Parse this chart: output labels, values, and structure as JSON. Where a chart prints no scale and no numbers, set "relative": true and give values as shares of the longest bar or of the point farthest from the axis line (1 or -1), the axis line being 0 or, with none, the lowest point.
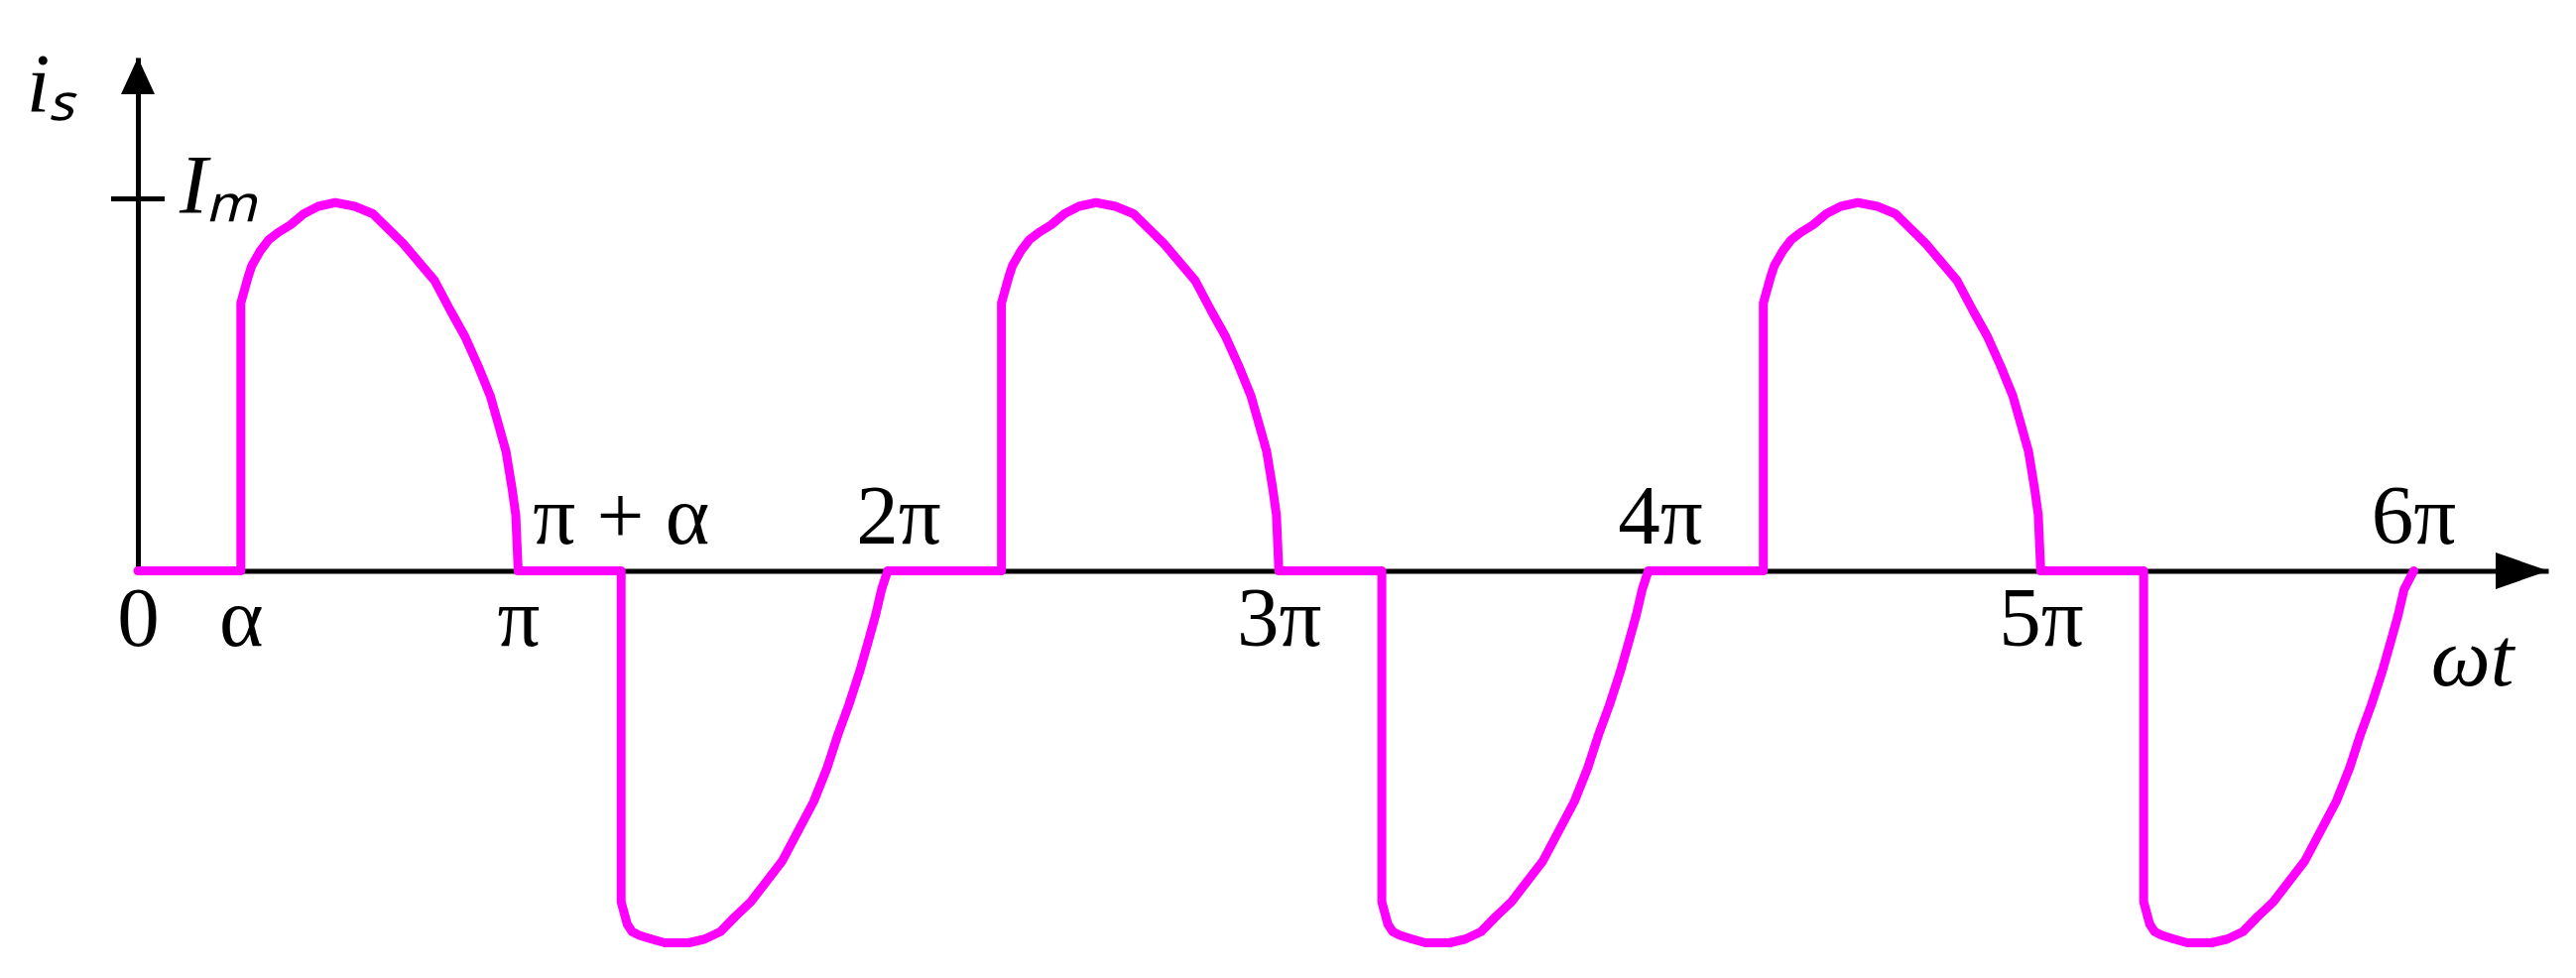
{
  "chart_data": {
    "type": "line",
    "relative": true,
    "xlabel": "ωt",
    "ylabel": "iₛ",
    "x": [
      0,
      0.85,
      0.85,
      0.91,
      0.94,
      1.01,
      1.08,
      1.16,
      1.26,
      1.37,
      1.49,
      1.63,
      1.79,
      1.94,
      2.19,
      2.32,
      2.45,
      2.58,
      2.7,
      2.81,
      2.91,
      2.98,
      3.04,
      3.09,
      3.12,
      3.14,
      3.99,
      3.99,
      4.04,
      4.08,
      4.14,
      4.24,
      4.35,
      4.45,
      4.55,
      4.68,
      4.81,
      4.93,
      5.06,
      5.32,
      5.45,
      5.58,
      5.69,
      5.78,
      5.87,
      5.96,
      6.03,
      6.09,
      6.14,
      6.19,
      7.13,
      7.13,
      7.19,
      7.22,
      7.29,
      7.36,
      7.44,
      7.54,
      7.65,
      7.77,
      7.91,
      8.07,
      8.22,
      8.47,
      8.6,
      8.73,
      8.86,
      8.98,
      9.09,
      9.19,
      9.26,
      9.32,
      9.37,
      9.4,
      9.42,
      10.27,
      10.27,
      10.32,
      10.36,
      10.42,
      10.52,
      10.63,
      10.73,
      10.83,
      10.96,
      11.09,
      11.21,
      11.34,
      11.6,
      11.73,
      11.86,
      11.97,
      12.06,
      12.15,
      12.24,
      12.31,
      12.37,
      12.42,
      12.47,
      13.42,
      13.42,
      13.48,
      13.51,
      13.58,
      13.65,
      13.73,
      13.83,
      13.94,
      14.06,
      14.2,
      14.36,
      14.51,
      14.76,
      14.89,
      15.02,
      15.15,
      15.27,
      15.38,
      15.48,
      15.55,
      15.61,
      15.66,
      15.69,
      15.71,
      16.56,
      16.56,
      16.61,
      16.65,
      16.71,
      16.81,
      16.92,
      17.02,
      17.12,
      17.25,
      17.38,
      17.5,
      17.63,
      17.89,
      18.02,
      18.15,
      18.26,
      18.35,
      18.44,
      18.53,
      18.6,
      18.66,
      18.71,
      18.79
    ],
    "series": [
      {
        "color": "#ff00ff",
        "values": [
          0,
          0,
          0.72,
          0.79,
          0.82,
          0.86,
          0.89,
          0.91,
          0.93,
          0.96,
          0.98,
          0.99,
          0.98,
          0.96,
          0.88,
          0.83,
          0.78,
          0.7,
          0.63,
          0.55,
          0.47,
          0.39,
          0.32,
          0.22,
          0.15,
          0,
          0,
          -0.89,
          -0.95,
          -0.97,
          -0.98,
          -0.99,
          -1.0,
          -1.0,
          -1.0,
          -0.99,
          -0.97,
          -0.93,
          -0.89,
          -0.78,
          -0.7,
          -0.62,
          -0.53,
          -0.44,
          -0.36,
          -0.27,
          -0.19,
          -0.12,
          -0.05,
          0,
          0,
          0.72,
          0.79,
          0.82,
          0.86,
          0.89,
          0.91,
          0.93,
          0.96,
          0.98,
          0.99,
          0.98,
          0.96,
          0.88,
          0.83,
          0.78,
          0.7,
          0.63,
          0.55,
          0.47,
          0.39,
          0.32,
          0.22,
          0.15,
          0,
          0,
          -0.89,
          -0.95,
          -0.97,
          -0.98,
          -0.99,
          -1.0,
          -1.0,
          -1.0,
          -0.99,
          -0.97,
          -0.93,
          -0.89,
          -0.78,
          -0.7,
          -0.62,
          -0.53,
          -0.44,
          -0.36,
          -0.27,
          -0.19,
          -0.12,
          -0.05,
          0,
          0,
          0.72,
          0.79,
          0.82,
          0.86,
          0.89,
          0.91,
          0.93,
          0.96,
          0.98,
          0.99,
          0.98,
          0.96,
          0.88,
          0.83,
          0.78,
          0.7,
          0.63,
          0.55,
          0.47,
          0.39,
          0.32,
          0.22,
          0.15,
          0,
          0,
          -0.89,
          -0.95,
          -0.97,
          -0.98,
          -0.99,
          -1.0,
          -1.0,
          -1.0,
          -0.99,
          -0.97,
          -0.93,
          -0.89,
          -0.78,
          -0.7,
          -0.62,
          -0.53,
          -0.44,
          -0.36,
          -0.27,
          -0.19,
          -0.12,
          -0.05,
          0
        ]
      }
    ],
    "xlim": [
      0,
      19.9
    ],
    "xticks": [
      0,
      {
        "value": 0.85,
        "label": "α"
      },
      {
        "value": 3.14,
        "label": "π"
      },
      {
        "value": 9.42,
        "label": "3π"
      },
      {
        "value": 15.71,
        "label": "5π"
      }
    ],
    "annotations": [
      "Iₘ",
      {
        "text": "π + α",
        "x": 3.99,
        "y": 0
      },
      {
        "text": "2π",
        "x": 6.28,
        "y": 0
      },
      {
        "text": "4π",
        "x": 12.57,
        "y": 0
      },
      {
        "text": "6π",
        "x": 18.79,
        "y": 0
      }
    ]
  }
}
